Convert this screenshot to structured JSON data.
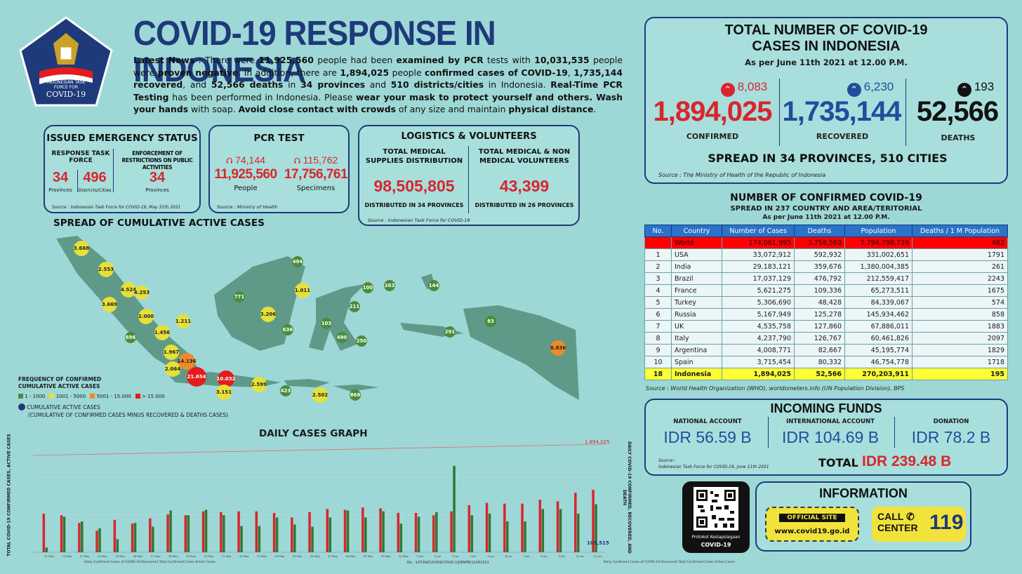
{
  "header": {
    "title": "COVID-19 RESPONSE IN INDONESIA",
    "logo_text_1": "INDONESIAN TASK",
    "logo_text_2": "FORCE FOR",
    "logo_text_3": "COVID-19"
  },
  "news": {
    "p1": "Latest News",
    "p2": " : There were ",
    "p3": "11,925,560",
    "p4": " people had been ",
    "p5": "examined by PCR",
    "p6": " tests with ",
    "p7": "10,031,535",
    "p8": " people were ",
    "p9": "proven negative",
    "p10": ". In addition, there are ",
    "p11": "1,894,025",
    "p12": " people ",
    "p13": "confirmed cases of COVID-19",
    "p14": ", ",
    "p15": "1,735,144 recovered",
    "p16": ", and ",
    "p17": "52,566 deaths",
    "p18": " in ",
    "p19": "34 provinces",
    "p20": " and ",
    "p21": "510 districts/cities",
    "p22": " in Indonesia. ",
    "p23": "Real-Time PCR Testing",
    "p24": " has been performed in Indonesia. Please ",
    "p25": "wear your mask to protect yourself and others. Wash your hands",
    "p26": " with soap. ",
    "p27": "Avoid close contact with crowds",
    "p28": " of any size and maintain ",
    "p29": "physical distance",
    "p30": "."
  },
  "emergency": {
    "title": "ISSUED EMERGENCY STATUS",
    "col1_head": "RESPONSE TASK FORCE",
    "col2_head": "ENFORCEMENT OF RESTRICTIONS ON PUBLIC ACTIVITIES",
    "v1": "34",
    "l1": "Provinces",
    "v2": "496",
    "l2": "Districts/Cities",
    "v3": "34",
    "l3": "Provinces",
    "source": "Source : Indonesian Task Force for COVID-19, May 31th 2021"
  },
  "pcr": {
    "title": "PCR TEST",
    "inc1": "74,144",
    "v1": "11,925,560",
    "l1": "People",
    "inc2": "115,762",
    "v2": "17,756,761",
    "l2": "Specimens",
    "source": "Source : Ministry of Health"
  },
  "logistics": {
    "title": "LOGISTICS & VOLUNTEERS",
    "h1": "TOTAL MEDICAL SUPPLIES DISTRIBUTION",
    "v1": "98,505,805",
    "d1": "DISTRIBUTED IN 34 PROVINCES",
    "h2": "TOTAL MEDICAL & NON MEDICAL VOLUNTEERS",
    "v2": "43,399",
    "d2": "DISTRIBUTED IN 26 PROVINCES",
    "source": "Source : Indonesian Task Force for COVID-19"
  },
  "totals": {
    "title1": "TOTAL NUMBER OF COVID-19",
    "title2": "CASES IN INDONESIA",
    "asof": "As per June 11th 2021 at 12.00 P.M.",
    "confirmed_inc": "8,083",
    "confirmed": "1,894,025",
    "confirmed_lbl": "CONFIRMED",
    "recovered_inc": "6,230",
    "recovered": "1,735,144",
    "recovered_lbl": "RECOVERED",
    "deaths_inc": "193",
    "deaths": "52,566",
    "deaths_lbl": "DEATHS",
    "spread": "SPREAD IN 34 PROVINCES, 510 CITIES",
    "source": "Source : The Ministry of Health of the Republic of Indonesia",
    "color_confirmed": "#d7262e",
    "color_recovered": "#1e4f9c",
    "color_deaths": "#111111"
  },
  "world": {
    "title": "NUMBER OF CONFIRMED COVID-19",
    "subtitle": "SPREAD IN 237 COUNTRY AND AREA/TERITORIAL",
    "asof": "As per June 11th 2021 at 12.00 P.M.",
    "headers": [
      "No.",
      "Country",
      "Number of Cases",
      "Deaths",
      "Population",
      "Deaths / 1 M Population"
    ],
    "rows": [
      [
        "",
        "World",
        "174,061,995",
        "3,758,560",
        "7,794,798,739",
        "482"
      ],
      [
        "1",
        "USA",
        "33,072,912",
        "592,932",
        "331,002,651",
        "1791"
      ],
      [
        "2",
        "India",
        "29,183,121",
        "359,676",
        "1,380,004,385",
        "261"
      ],
      [
        "3",
        "Brazil",
        "17,037,129",
        "476,792",
        "212,559,417",
        "2243"
      ],
      [
        "4",
        "France",
        "5,621,275",
        "109,336",
        "65,273,511",
        "1675"
      ],
      [
        "5",
        "Turkey",
        "5,306,690",
        "48,428",
        "84,339,067",
        "574"
      ],
      [
        "6",
        "Russia",
        "5,167,949",
        "125,278",
        "145,934,462",
        "858"
      ],
      [
        "7",
        "UK",
        "4,535,758",
        "127,860",
        "67,886,011",
        "1883"
      ],
      [
        "8",
        "Italy",
        "4,237,790",
        "126,767",
        "60,461,826",
        "2097"
      ],
      [
        "9",
        "Argentina",
        "4,008,771",
        "82,667",
        "45,195,774",
        "1829"
      ],
      [
        "10",
        "Spain",
        "3,715,454",
        "80,332",
        "46,754,778",
        "1718"
      ],
      [
        "18",
        "Indonesia",
        "1,894,025",
        "52,566",
        "270,203,911",
        "195"
      ]
    ],
    "source": "Source : World Health Organization (WHO), worldometers.info (UN Population Division), BPS"
  },
  "funds": {
    "title": "INCOMING FUNDS",
    "h1": "NATIONAL ACCOUNT",
    "v1": "IDR 56.59 B",
    "h2": "INTERNATIONAL ACCOUNT",
    "v2": "IDR 104.69 B",
    "h3": "DONATION",
    "v3": "IDR 78.2 B",
    "source1": "Source :",
    "source2": "Indonesian Task Force for COVID-19, June 11th 2021",
    "total_lbl": "TOTAL",
    "total": "IDR 239.48 B"
  },
  "info": {
    "title": "INFORMATION",
    "official": "OFFICIAL SITE",
    "site": "www.covid19.go.id",
    "call1": "CALL",
    "call2": "CENTER",
    "call_num": "119",
    "qr1": "Protokol Kesiapsiagaan",
    "qr2": "COVID-19"
  },
  "map": {
    "title": "SPREAD OF CUMULATIVE ACTIVE CASES",
    "legend_title1": "FREQUENCY OF CONFIRMED",
    "legend_title2": "CUMULATIVE ACTIVE CASES",
    "legend_items": [
      "1 - 1000",
      "1001 - 5000",
      "5001 - 15.000",
      "> 15.000"
    ],
    "legend_colors": [
      "#4a8c3b",
      "#e8e03a",
      "#f08a28",
      "#e61c1c"
    ],
    "cumulative_lbl": "CUMULATIVE ACTIVE CASES",
    "cumulative_note": "(CUMULATIVE OF CONFIRMED CASES MINUS RECOVERED & DEATHS CASES)",
    "labels": [
      "3.668",
      "2.553",
      "4.524",
      "4.253",
      "3.669",
      "2.000",
      "1.456",
      "1.211",
      "696",
      "1.967",
      "2.064",
      "14.136",
      "21.654",
      "10.032",
      "3.151",
      "2.599",
      "423",
      "2.502",
      "868",
      "494",
      "771",
      "1.011",
      "3.206",
      "636",
      "100",
      "263",
      "211",
      "103",
      "490",
      "250",
      "144",
      "83",
      "291",
      "8.836"
    ]
  },
  "graph": {
    "title": "DAILY CASES GRAPH",
    "y_left": "TOTAL COVID-19 CONFIRMED CASES, ACTIVE CASES",
    "y_right": "DAILY COVID-19 CONFIRMED, RECOVERED, AND DEATH",
    "total_label": "1,894,025",
    "end_label": "105,515",
    "legend_left": "Daily Confirmed Cases of COVID-19   Recovered   Total Confirmed Cases   Active Cases",
    "legend_right": "Daily Confirmed Cases of COVID-19   Recovered   Total Confirmed Cases   Active Cases",
    "footer": "No : 147/04/52/099/COVID-19/BNPB/11062021"
  },
  "chart_data": {
    "type": "bar",
    "categories": [
      "11 May",
      "12 May",
      "13 May",
      "14 May",
      "15 May",
      "16 May",
      "17 May",
      "18 May",
      "19 May",
      "20 May",
      "21 May",
      "22 May",
      "23 May",
      "24 May",
      "25 May",
      "26 May",
      "27 May",
      "28 May",
      "29 May",
      "30 May",
      "31 May",
      "1 Jun",
      "2 Jun",
      "3 Jun",
      "4 Jun",
      "5 Jun",
      "6 Jun",
      "7 Jun",
      "8 Jun",
      "9 Jun",
      "10 Jun",
      "11 Jun"
    ],
    "series": [
      {
        "name": "Daily Confirmed Cases of COVID-19",
        "values": [
          5000,
          4800,
          3800,
          2800,
          4200,
          3700,
          4400,
          4900,
          4800,
          5300,
          5200,
          5300,
          5300,
          5100,
          4500,
          5200,
          5600,
          5500,
          5800,
          5700,
          5100,
          5100,
          4800,
          5300,
          6100,
          6400,
          6300,
          6300,
          6800,
          6600,
          7700,
          8083
        ]
      },
      {
        "name": "Recovered",
        "values": [
          600,
          4600,
          4000,
          3100,
          1700,
          3800,
          3300,
          5400,
          4800,
          5500,
          4800,
          3400,
          3400,
          4500,
          3600,
          3300,
          4500,
          5400,
          4500,
          5300,
          3700,
          4600,
          5200,
          11200,
          4800,
          5000,
          4000,
          4000,
          5600,
          5600,
          5000,
          6230
        ]
      }
    ],
    "ylim": [
      0,
      12000
    ]
  }
}
